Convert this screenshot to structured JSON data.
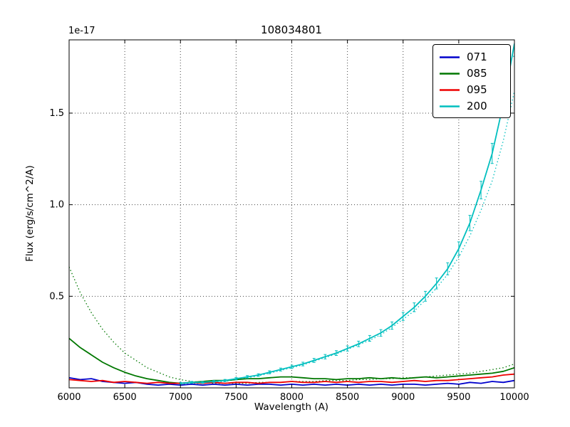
{
  "chart_data": {
    "type": "line",
    "title": "108034801",
    "offset_text": "1e-17",
    "xlabel": "Wavelength (A)",
    "ylabel": "Flux (erg/s/cm^2/A)",
    "xlim": [
      6000,
      10000
    ],
    "ylim": [
      0,
      1.9
    ],
    "xticks": [
      6000,
      6500,
      7000,
      7500,
      8000,
      8500,
      9000,
      9500,
      10000
    ],
    "yticks": [
      0.5,
      1.0,
      1.5
    ],
    "grid": true,
    "grid_style": "dotted",
    "background_color": "#ffffff",
    "legend": {
      "position": "upper right",
      "entries": [
        {
          "label": "071",
          "color": "#0000cc"
        },
        {
          "label": "085",
          "color": "#007700"
        },
        {
          "label": "095",
          "color": "#ee0000"
        },
        {
          "label": "200",
          "color": "#00bfbf"
        }
      ]
    },
    "series": [
      {
        "name": "085-model",
        "color": "#007700",
        "style": "dotted",
        "in_legend": false,
        "x_start": 6000,
        "x_step": 100,
        "y": [
          0.66,
          0.52,
          0.41,
          0.32,
          0.25,
          0.19,
          0.15,
          0.11,
          0.085,
          0.06,
          0.045,
          0.035,
          0.03,
          0.025,
          0.025,
          0.025,
          0.025,
          0.03,
          0.03,
          0.03,
          0.035,
          0.035,
          0.035,
          0.04,
          0.04,
          0.04,
          0.045,
          0.045,
          0.05,
          0.05,
          0.055,
          0.055,
          0.06,
          0.065,
          0.07,
          0.075,
          0.08,
          0.09,
          0.1,
          0.11,
          0.13
        ]
      },
      {
        "name": "200-model",
        "color": "#00bfbf",
        "style": "dotted",
        "in_legend": false,
        "x_start": 7000,
        "x_step": 100,
        "y": [
          0.02,
          0.022,
          0.025,
          0.03,
          0.035,
          0.045,
          0.055,
          0.065,
          0.08,
          0.095,
          0.11,
          0.125,
          0.145,
          0.165,
          0.185,
          0.21,
          0.235,
          0.26,
          0.29,
          0.33,
          0.375,
          0.42,
          0.48,
          0.545,
          0.62,
          0.715,
          0.83,
          0.97,
          1.13,
          1.35,
          1.62
        ]
      },
      {
        "name": "071",
        "color": "#0000cc",
        "style": "solid",
        "in_legend": true,
        "x_start": 6000,
        "x_step": 100,
        "y": [
          0.055,
          0.045,
          0.05,
          0.035,
          0.03,
          0.025,
          0.03,
          0.02,
          0.015,
          0.02,
          0.015,
          0.02,
          0.015,
          0.02,
          0.015,
          0.02,
          0.015,
          0.02,
          0.02,
          0.015,
          0.02,
          0.015,
          0.02,
          0.015,
          0.02,
          0.015,
          0.02,
          0.015,
          0.02,
          0.015,
          0.02,
          0.02,
          0.015,
          0.02,
          0.025,
          0.02,
          0.03,
          0.025,
          0.035,
          0.03,
          0.04
        ]
      },
      {
        "name": "085",
        "color": "#007700",
        "style": "solid",
        "in_legend": true,
        "x_start": 6000,
        "x_step": 100,
        "y": [
          0.27,
          0.22,
          0.18,
          0.14,
          0.11,
          0.085,
          0.065,
          0.05,
          0.04,
          0.03,
          0.025,
          0.03,
          0.035,
          0.04,
          0.04,
          0.045,
          0.05,
          0.05,
          0.055,
          0.06,
          0.06,
          0.055,
          0.05,
          0.05,
          0.045,
          0.05,
          0.05,
          0.055,
          0.05,
          0.055,
          0.05,
          0.055,
          0.06,
          0.055,
          0.06,
          0.065,
          0.07,
          0.075,
          0.08,
          0.09,
          0.11
        ]
      },
      {
        "name": "095",
        "color": "#ee0000",
        "style": "solid",
        "in_legend": true,
        "x_start": 6000,
        "x_step": 100,
        "y": [
          0.045,
          0.04,
          0.035,
          0.04,
          0.03,
          0.035,
          0.03,
          0.025,
          0.03,
          0.025,
          0.025,
          0.03,
          0.025,
          0.03,
          0.025,
          0.03,
          0.03,
          0.025,
          0.03,
          0.03,
          0.035,
          0.03,
          0.03,
          0.035,
          0.03,
          0.035,
          0.03,
          0.035,
          0.035,
          0.03,
          0.035,
          0.04,
          0.035,
          0.04,
          0.04,
          0.045,
          0.05,
          0.055,
          0.06,
          0.07,
          0.075
        ]
      },
      {
        "name": "200",
        "color": "#00bfbf",
        "style": "solid",
        "in_legend": true,
        "x_start": 7000,
        "x_step": 100,
        "y": [
          0.025,
          0.03,
          0.03,
          0.035,
          0.04,
          0.05,
          0.06,
          0.07,
          0.085,
          0.1,
          0.115,
          0.13,
          0.15,
          0.17,
          0.19,
          0.215,
          0.24,
          0.27,
          0.3,
          0.34,
          0.39,
          0.44,
          0.5,
          0.57,
          0.65,
          0.76,
          0.9,
          1.08,
          1.28,
          1.55,
          1.88
        ],
        "yerr": [
          0.005,
          0.005,
          0.005,
          0.005,
          0.006,
          0.006,
          0.007,
          0.007,
          0.008,
          0.008,
          0.009,
          0.01,
          0.011,
          0.012,
          0.013,
          0.014,
          0.015,
          0.016,
          0.018,
          0.02,
          0.022,
          0.024,
          0.027,
          0.03,
          0.033,
          0.037,
          0.042,
          0.048,
          0.055,
          0.062,
          0.07
        ]
      }
    ]
  }
}
